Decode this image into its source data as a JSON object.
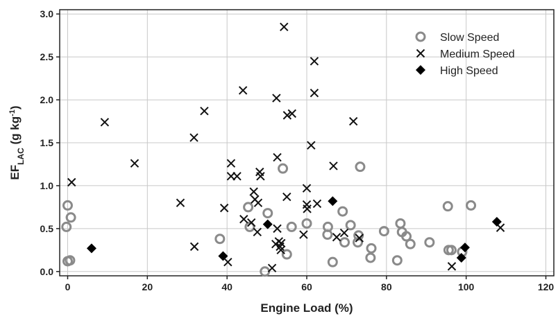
{
  "chart_data": {
    "type": "scatter",
    "title": "",
    "xlabel": "Engine Load (%)",
    "ylabel": {
      "main": "EF",
      "sub": "LAC",
      "unit_open": " (g kg",
      "unit_sup": "-1",
      "unit_close": ")"
    },
    "xlim": [
      -2,
      122
    ],
    "ylim": [
      -0.05,
      3.05
    ],
    "x_ticks": [
      0,
      20,
      40,
      60,
      80,
      100,
      120
    ],
    "y_ticks": [
      0.0,
      0.5,
      1.0,
      1.5,
      2.0,
      2.5,
      3.0
    ],
    "x_tick_labels": [
      "0",
      "20",
      "40",
      "60",
      "80",
      "100",
      "120"
    ],
    "y_tick_labels": [
      "0.0",
      "0.5",
      "1.0",
      "1.5",
      "2.0",
      "2.5",
      "3.0"
    ],
    "grid": true,
    "legend_position": "top-right",
    "series": [
      {
        "name": "Slow Speed",
        "marker": "circle",
        "color": "#8a8a8a",
        "points": [
          [
            0.0,
            0.77
          ],
          [
            -0.3,
            0.52
          ],
          [
            0.8,
            0.63
          ],
          [
            0.0,
            0.12
          ],
          [
            0.6,
            0.13
          ],
          [
            38.2,
            0.38
          ],
          [
            45.3,
            0.75
          ],
          [
            45.7,
            0.52
          ],
          [
            49.5,
            0.0
          ],
          [
            50.2,
            0.68
          ],
          [
            54.0,
            1.2
          ],
          [
            55.0,
            0.2
          ],
          [
            56.2,
            0.52
          ],
          [
            60.0,
            0.56
          ],
          [
            65.2,
            0.43
          ],
          [
            65.3,
            0.52
          ],
          [
            66.5,
            0.11
          ],
          [
            69.0,
            0.7
          ],
          [
            69.5,
            0.34
          ],
          [
            71.0,
            0.54
          ],
          [
            72.8,
            0.34
          ],
          [
            73.0,
            0.42
          ],
          [
            73.4,
            1.22
          ],
          [
            76.0,
            0.16
          ],
          [
            76.2,
            0.27
          ],
          [
            79.4,
            0.47
          ],
          [
            82.7,
            0.13
          ],
          [
            83.5,
            0.56
          ],
          [
            83.9,
            0.46
          ],
          [
            85.0,
            0.41
          ],
          [
            86.0,
            0.32
          ],
          [
            90.8,
            0.34
          ],
          [
            95.4,
            0.76
          ],
          [
            95.6,
            0.25
          ],
          [
            96.3,
            0.25
          ],
          [
            99.0,
            0.23
          ],
          [
            101.2,
            0.77
          ]
        ]
      },
      {
        "name": "Medium Speed",
        "marker": "cross",
        "color": "#111111",
        "points": [
          [
            1.0,
            1.04
          ],
          [
            9.3,
            1.74
          ],
          [
            16.8,
            1.26
          ],
          [
            28.3,
            0.8
          ],
          [
            31.7,
            1.56
          ],
          [
            31.8,
            0.29
          ],
          [
            34.3,
            1.87
          ],
          [
            39.3,
            0.74
          ],
          [
            40.2,
            0.11
          ],
          [
            41.0,
            1.26
          ],
          [
            41.0,
            1.11
          ],
          [
            42.5,
            1.11
          ],
          [
            44.0,
            2.11
          ],
          [
            44.2,
            0.61
          ],
          [
            46.1,
            0.57
          ],
          [
            46.7,
            0.93
          ],
          [
            47.0,
            0.84
          ],
          [
            47.8,
            0.8
          ],
          [
            47.6,
            0.46
          ],
          [
            48.2,
            1.16
          ],
          [
            48.4,
            1.11
          ],
          [
            51.3,
            0.04
          ],
          [
            52.2,
            0.32
          ],
          [
            52.4,
            2.02
          ],
          [
            52.6,
            1.33
          ],
          [
            52.6,
            0.5
          ],
          [
            53.0,
            0.35
          ],
          [
            53.5,
            0.25
          ],
          [
            53.3,
            0.29
          ],
          [
            53.6,
            0.33
          ],
          [
            54.3,
            2.85
          ],
          [
            55.1,
            1.82
          ],
          [
            55.0,
            0.87
          ],
          [
            56.3,
            1.84
          ],
          [
            59.2,
            0.43
          ],
          [
            60.0,
            0.97
          ],
          [
            60.0,
            0.78
          ],
          [
            60.1,
            0.73
          ],
          [
            61.1,
            1.47
          ],
          [
            61.9,
            2.45
          ],
          [
            61.9,
            2.08
          ],
          [
            62.6,
            0.79
          ],
          [
            66.7,
            1.23
          ],
          [
            67.5,
            0.4
          ],
          [
            69.4,
            0.45
          ],
          [
            71.7,
            1.75
          ],
          [
            73.2,
            0.39
          ],
          [
            96.4,
            0.06
          ],
          [
            108.6,
            0.51
          ]
        ]
      },
      {
        "name": "High Speed",
        "marker": "diamond",
        "color": "#000000",
        "points": [
          [
            6.0,
            0.27
          ],
          [
            39.0,
            0.18
          ],
          [
            50.2,
            0.55
          ],
          [
            66.5,
            0.82
          ],
          [
            98.8,
            0.16
          ],
          [
            99.7,
            0.28
          ],
          [
            107.7,
            0.58
          ]
        ]
      }
    ]
  }
}
